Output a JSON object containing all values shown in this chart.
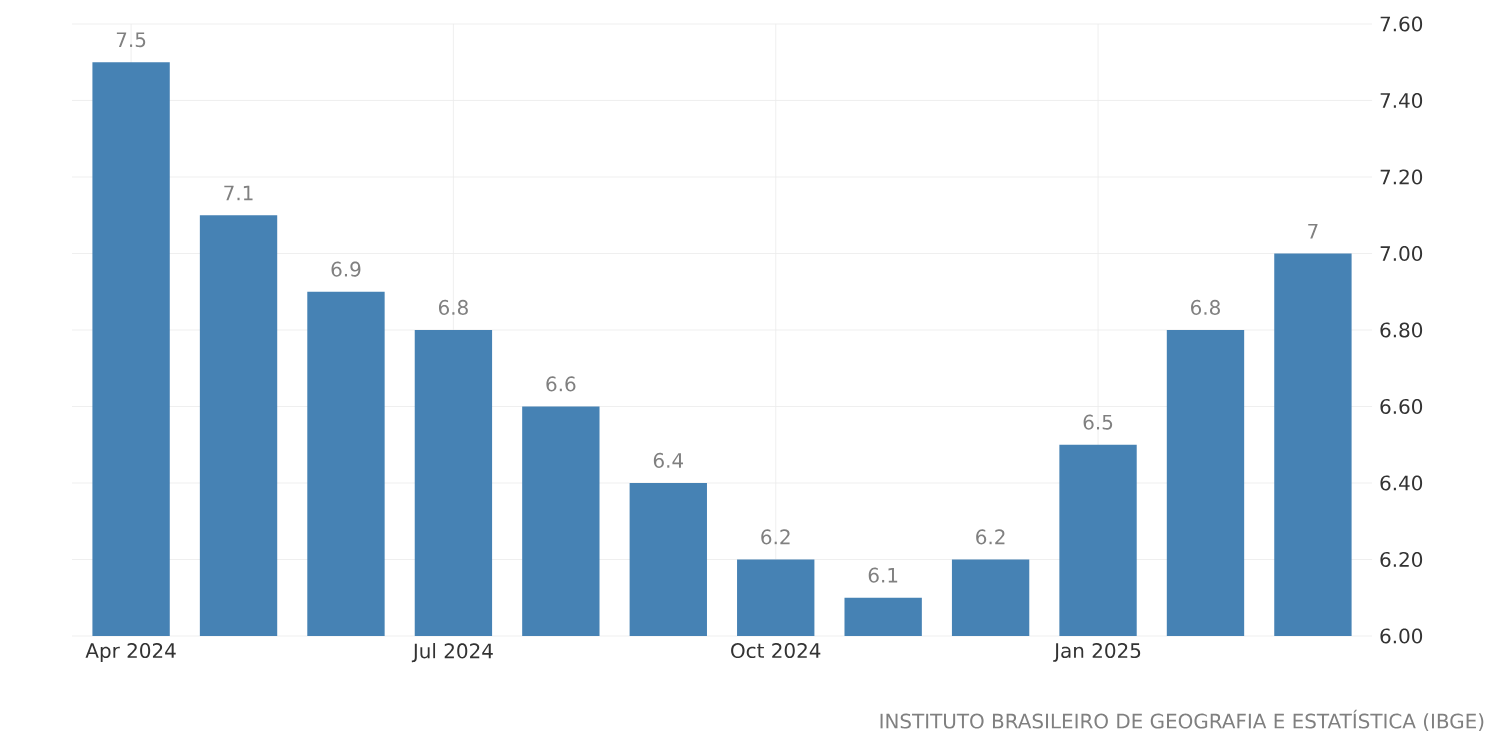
{
  "chart_data": {
    "type": "bar",
    "categories": [
      "Apr 2024",
      null,
      null,
      "Jul 2024",
      null,
      null,
      "Oct 2024",
      null,
      null,
      "Jan 2025",
      null,
      null
    ],
    "values": [
      7.5,
      7.1,
      6.9,
      6.8,
      6.6,
      6.4,
      6.2,
      6.1,
      6.2,
      6.5,
      6.8,
      7
    ],
    "color": "#4682b4",
    "data_labels": true,
    "ylim": [
      6.0,
      7.6
    ],
    "yticks": [
      {
        "value": 6.0,
        "label": "6.00"
      },
      {
        "value": 6.2,
        "label": "6.20"
      },
      {
        "value": 6.4,
        "label": "6.40"
      },
      {
        "value": 6.6,
        "label": "6.60"
      },
      {
        "value": 6.8,
        "label": "6.80"
      },
      {
        "value": 7.0,
        "label": "7.00"
      },
      {
        "value": 7.2,
        "label": "7.20"
      },
      {
        "value": 7.4,
        "label": "7.40"
      },
      {
        "value": 7.6,
        "label": "7.60"
      }
    ],
    "grid": true,
    "annotations": [
      "INSTITUTO BRASILEIRO DE GEOGRAFIA E ESTATÍSTICA (IBGE)"
    ]
  }
}
